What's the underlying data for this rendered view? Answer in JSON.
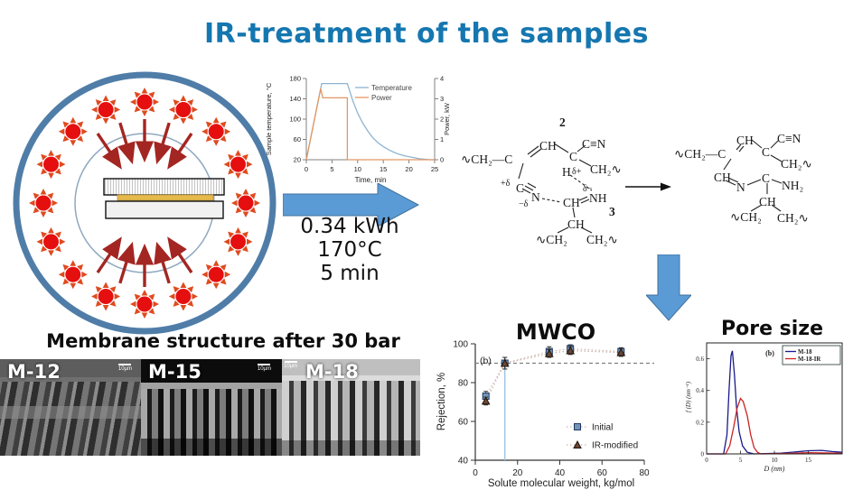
{
  "slide_title": "IR-treatment of the samples",
  "colors": {
    "title_blue": "#1577b0",
    "arrow_blue": "#5b9bd5",
    "arrow_blue_border": "#41719c",
    "ring_blue": "#4f7da8",
    "inner_ring_blue": "#8fa8bf",
    "sun_red": "#e60f0f",
    "ray_red": "#df4a1e",
    "heat_arrow_red": "#a32622",
    "plate_gold": "#e6b94d"
  },
  "process_conditions": {
    "energy": "0.34 kWh",
    "temperature": "170°C",
    "duration": "5 min"
  },
  "ir_chamber": {
    "sun_count": 16,
    "arrow_angles": [
      56,
      73,
      90,
      107,
      124
    ]
  },
  "membrane_section": {
    "heading": "Membrane structure after 30 bar",
    "panels": [
      {
        "label": "M-12",
        "scale_label": "10µm"
      },
      {
        "label": "M-15",
        "scale_label": "10µm"
      },
      {
        "label": "M-18",
        "scale_label": "10µm"
      }
    ]
  },
  "chemistry": {
    "left": {
      "num": "2",
      "ch_top": "CH",
      "nitrile": "C≡N",
      "backbone": "∿CH₂—C",
      "c_quat": "C",
      "h_label": "H",
      "delta_plus": "δ+",
      "ch2_r": "CH₂∿",
      "plus_delta": "+δ",
      "c_nitrile": "C",
      "n_nitrile": "N",
      "minus_delta": "−δ",
      "ch_imine": "CH",
      "delta_minus": "δ−",
      "nh": "NH",
      "num3": "3",
      "ch_down": "CH",
      "ch2_bl": "∿CH₂",
      "ch2_br": "CH₂∿"
    },
    "right": {
      "nitrile": "C≡N",
      "ch_top": "CH",
      "backbone": "∿CH₂—C",
      "c_quat": "C",
      "ch2_r": "CH₂∿",
      "ch_ring": "CH",
      "n_ring": "N",
      "c_ring": "C",
      "nh2": "NH₂",
      "ch_down": "CH",
      "ch2_bl": "∿CH₂",
      "ch2_br": "CH₂∿"
    }
  },
  "chart_data": [
    {
      "id": "temp-power",
      "type": "line",
      "title": "",
      "xlabel": "Time, min",
      "ylabel_left": "Sample temperature, °C",
      "ylabel_right": "Power, kW",
      "xlim": [
        0,
        25
      ],
      "xticks": [
        0,
        5,
        10,
        15,
        20,
        25
      ],
      "ylim_left": [
        20,
        180
      ],
      "yticks_left": [
        20,
        60,
        100,
        140,
        180
      ],
      "ylim_right": [
        0,
        4
      ],
      "yticks_right": [
        0,
        1,
        2,
        3,
        4
      ],
      "grid": false,
      "legend_position": "inside top-right",
      "series": [
        {
          "name": "Temperature",
          "axis": "left",
          "color": "#8eb4d2",
          "points": [
            [
              0,
              20
            ],
            [
              3,
              170
            ],
            [
              8,
              170
            ],
            [
              9,
              138
            ],
            [
              10,
              112
            ],
            [
              11,
              92
            ],
            [
              12,
              76
            ],
            [
              13,
              63
            ],
            [
              14,
              53
            ],
            [
              15,
              46
            ],
            [
              16,
              40
            ],
            [
              17,
              35
            ],
            [
              18,
              31
            ],
            [
              19,
              28
            ],
            [
              20,
              26
            ],
            [
              21,
              24
            ],
            [
              22,
              22
            ],
            [
              23,
              21
            ],
            [
              24,
              20
            ],
            [
              25,
              20
            ]
          ]
        },
        {
          "name": "Power",
          "axis": "right",
          "color": "#e39663",
          "points": [
            [
              0,
              0
            ],
            [
              2.8,
              3.5
            ],
            [
              3.2,
              3.05
            ],
            [
              8,
              3.05
            ],
            [
              8,
              0
            ],
            [
              24,
              0
            ],
            [
              25,
              0
            ]
          ]
        }
      ]
    },
    {
      "id": "mwco",
      "type": "scatter",
      "title": "MWCO",
      "panel_label": "(b)",
      "xlabel": "Solute molecular weight, kg/mol",
      "ylabel": "Rejection, %",
      "xlim": [
        0,
        80
      ],
      "xticks": [
        0,
        20,
        40,
        60,
        80
      ],
      "ylim": [
        40,
        100
      ],
      "yticks": [
        40,
        60,
        80,
        100
      ],
      "grid": false,
      "hline": 90,
      "vline": {
        "x": 14,
        "y_top": 90,
        "color": "#9dc3e6"
      },
      "legend_position": "inside bottom-right",
      "series": [
        {
          "name": "Initial",
          "marker": "square",
          "color": "#7593b8",
          "edge": "#1f3a5f",
          "x": [
            5,
            14,
            35,
            45,
            69
          ],
          "y": [
            73,
            90,
            96,
            97.5,
            96
          ],
          "err": [
            2.5,
            3,
            2.5,
            2,
            2
          ]
        },
        {
          "name": "IR-modified",
          "marker": "triangle",
          "color": "#6b4632",
          "edge": "#1a120c",
          "x": [
            5,
            14,
            35,
            45,
            69
          ],
          "y": [
            70.5,
            90,
            95,
            96.5,
            95.5
          ],
          "err": [
            2,
            3,
            2,
            2,
            2
          ]
        }
      ]
    },
    {
      "id": "pore-size",
      "type": "line",
      "title": "Pore size",
      "panel_label": "(b)",
      "xlabel": "D (nm)",
      "ylabel": "f (D) (nm⁻¹)",
      "xlim": [
        0,
        20
      ],
      "xticks": [
        0,
        5,
        10,
        15
      ],
      "ylim": [
        0,
        0.7
      ],
      "yticks": [
        0,
        0.2,
        0.4,
        0.6
      ],
      "grid": false,
      "legend_position": "inside top-right",
      "series": [
        {
          "name": "M-18",
          "color": "#1a1a8c",
          "points": [
            [
              0,
              0
            ],
            [
              2.5,
              0
            ],
            [
              3,
              0.12
            ],
            [
              3.3,
              0.4
            ],
            [
              3.6,
              0.62
            ],
            [
              3.8,
              0.65
            ],
            [
              4.1,
              0.5
            ],
            [
              4.4,
              0.3
            ],
            [
              4.8,
              0.14
            ],
            [
              5.3,
              0.05
            ],
            [
              6,
              0.01
            ],
            [
              7,
              0
            ],
            [
              11,
              0.005
            ],
            [
              13,
              0.012
            ],
            [
              15,
              0.02
            ],
            [
              17,
              0.022
            ],
            [
              18.5,
              0.015
            ],
            [
              20,
              0.01
            ]
          ]
        },
        {
          "name": "M-18-IR",
          "color": "#cc2222",
          "points": [
            [
              0,
              0
            ],
            [
              2.8,
              0
            ],
            [
              3.4,
              0.05
            ],
            [
              4,
              0.17
            ],
            [
              4.5,
              0.29
            ],
            [
              5,
              0.35
            ],
            [
              5.4,
              0.33
            ],
            [
              6,
              0.24
            ],
            [
              6.5,
              0.12
            ],
            [
              7,
              0.04
            ],
            [
              7.5,
              0.01
            ],
            [
              8,
              0
            ],
            [
              13,
              0.004
            ],
            [
              15,
              0.008
            ],
            [
              17,
              0.006
            ],
            [
              20,
              0.004
            ]
          ]
        }
      ]
    }
  ]
}
